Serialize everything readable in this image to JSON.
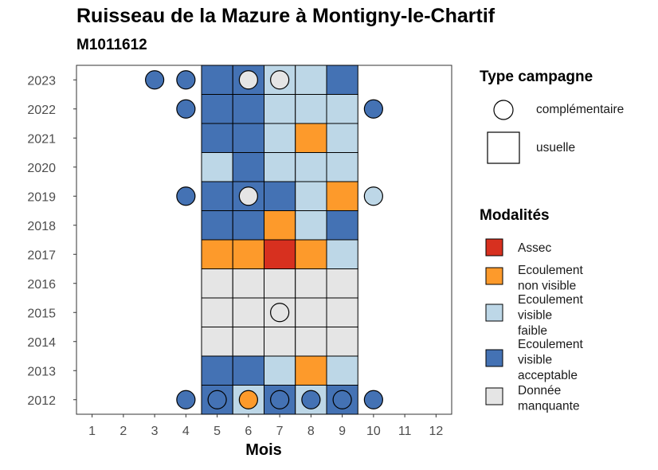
{
  "title": "Ruisseau de la Mazure à Montigny-le-Chartif",
  "subtitle": "M1011612",
  "chart_data": {
    "type": "heatmap",
    "xlabel": "Mois",
    "ylabel": "",
    "x_ticks": [
      "1",
      "2",
      "3",
      "4",
      "5",
      "6",
      "7",
      "8",
      "9",
      "10",
      "11",
      "12"
    ],
    "y_ticks": [
      "2023",
      "2022",
      "2021",
      "2020",
      "2019",
      "2018",
      "2017",
      "2016",
      "2015",
      "2014",
      "2013",
      "2012"
    ],
    "xlim": [
      0.5,
      12.5
    ],
    "ylim": [
      2011.5,
      2023.5
    ],
    "grid": false,
    "legend_position": "right",
    "colors": {
      "Assec": "#d7301f",
      "Ecoulement non visible": "#fd9a2b",
      "Ecoulement visible faible": "#bdd7e7",
      "Ecoulement visible acceptable": "#4472b4",
      "Donnée manquante": "#e5e5e5"
    },
    "campaign_types": {
      "title": "Type campagne",
      "items": [
        {
          "label": "complémentaire",
          "shape": "circle"
        },
        {
          "label": "usuelle",
          "shape": "square"
        }
      ]
    },
    "modalities": {
      "title": "Modalités",
      "items": [
        {
          "key": "Assec",
          "lines": [
            "Assec"
          ]
        },
        {
          "key": "Ecoulement non visible",
          "lines": [
            "Ecoulement",
            "non visible"
          ]
        },
        {
          "key": "Ecoulement visible faible",
          "lines": [
            "Ecoulement",
            "visible",
            "faible"
          ]
        },
        {
          "key": "Ecoulement visible acceptable",
          "lines": [
            "Ecoulement",
            "visible",
            "acceptable"
          ]
        },
        {
          "key": "Donnée manquante",
          "lines": [
            "Donnée",
            "manquante"
          ]
        }
      ]
    },
    "usuelle": [
      {
        "year": 2023,
        "values": {
          "5": "Ecoulement visible acceptable",
          "6": "Ecoulement visible acceptable",
          "7": "Ecoulement visible faible",
          "8": "Ecoulement visible faible",
          "9": "Ecoulement visible acceptable"
        }
      },
      {
        "year": 2022,
        "values": {
          "5": "Ecoulement visible acceptable",
          "6": "Ecoulement visible acceptable",
          "7": "Ecoulement visible faible",
          "8": "Ecoulement visible faible",
          "9": "Ecoulement visible faible"
        }
      },
      {
        "year": 2021,
        "values": {
          "5": "Ecoulement visible acceptable",
          "6": "Ecoulement visible acceptable",
          "7": "Ecoulement visible faible",
          "8": "Ecoulement non visible",
          "9": "Ecoulement visible faible"
        }
      },
      {
        "year": 2020,
        "values": {
          "5": "Ecoulement visible faible",
          "6": "Ecoulement visible acceptable",
          "7": "Ecoulement visible faible",
          "8": "Ecoulement visible faible",
          "9": "Ecoulement visible faible"
        }
      },
      {
        "year": 2019,
        "values": {
          "5": "Ecoulement visible acceptable",
          "6": "Ecoulement visible acceptable",
          "7": "Ecoulement visible acceptable",
          "8": "Ecoulement visible faible",
          "9": "Ecoulement non visible"
        }
      },
      {
        "year": 2018,
        "values": {
          "5": "Ecoulement visible acceptable",
          "6": "Ecoulement visible acceptable",
          "7": "Ecoulement non visible",
          "8": "Ecoulement visible faible",
          "9": "Ecoulement visible acceptable"
        }
      },
      {
        "year": 2017,
        "values": {
          "5": "Ecoulement non visible",
          "6": "Ecoulement non visible",
          "7": "Assec",
          "8": "Ecoulement non visible",
          "9": "Ecoulement visible faible"
        }
      },
      {
        "year": 2016,
        "values": {
          "5": "Donnée manquante",
          "6": "Donnée manquante",
          "7": "Donnée manquante",
          "8": "Donnée manquante",
          "9": "Donnée manquante"
        }
      },
      {
        "year": 2015,
        "values": {
          "5": "Donnée manquante",
          "6": "Donnée manquante",
          "7": "Donnée manquante",
          "8": "Donnée manquante",
          "9": "Donnée manquante"
        }
      },
      {
        "year": 2014,
        "values": {
          "5": "Donnée manquante",
          "6": "Donnée manquante",
          "7": "Donnée manquante",
          "8": "Donnée manquante",
          "9": "Donnée manquante"
        }
      },
      {
        "year": 2013,
        "values": {
          "5": "Ecoulement visible acceptable",
          "6": "Ecoulement visible acceptable",
          "7": "Ecoulement visible faible",
          "8": "Ecoulement non visible",
          "9": "Ecoulement visible faible"
        }
      },
      {
        "year": 2012,
        "values": {
          "5": "Ecoulement visible acceptable",
          "6": "Ecoulement visible faible",
          "7": "Ecoulement visible acceptable",
          "8": "Ecoulement visible faible",
          "9": "Ecoulement visible acceptable"
        }
      }
    ],
    "complementaire": [
      {
        "year": 2023,
        "month": 3,
        "value": "Ecoulement visible acceptable"
      },
      {
        "year": 2023,
        "month": 4,
        "value": "Ecoulement visible acceptable"
      },
      {
        "year": 2023,
        "month": 6,
        "value": "Donnée manquante"
      },
      {
        "year": 2023,
        "month": 7,
        "value": "Donnée manquante"
      },
      {
        "year": 2022,
        "month": 4,
        "value": "Ecoulement visible acceptable"
      },
      {
        "year": 2022,
        "month": 10,
        "value": "Ecoulement visible acceptable"
      },
      {
        "year": 2019,
        "month": 4,
        "value": "Ecoulement visible acceptable"
      },
      {
        "year": 2019,
        "month": 6,
        "value": "Donnée manquante"
      },
      {
        "year": 2019,
        "month": 10,
        "value": "Ecoulement visible faible"
      },
      {
        "year": 2015,
        "month": 7,
        "value": "Donnée manquante"
      },
      {
        "year": 2012,
        "month": 4,
        "value": "Ecoulement visible acceptable"
      },
      {
        "year": 2012,
        "month": 5,
        "value": "Ecoulement visible acceptable"
      },
      {
        "year": 2012,
        "month": 6,
        "value": "Ecoulement non visible"
      },
      {
        "year": 2012,
        "month": 7,
        "value": "Ecoulement visible acceptable"
      },
      {
        "year": 2012,
        "month": 8,
        "value": "Ecoulement visible acceptable"
      },
      {
        "year": 2012,
        "month": 9,
        "value": "Ecoulement visible acceptable"
      },
      {
        "year": 2012,
        "month": 10,
        "value": "Ecoulement visible acceptable"
      }
    ]
  }
}
